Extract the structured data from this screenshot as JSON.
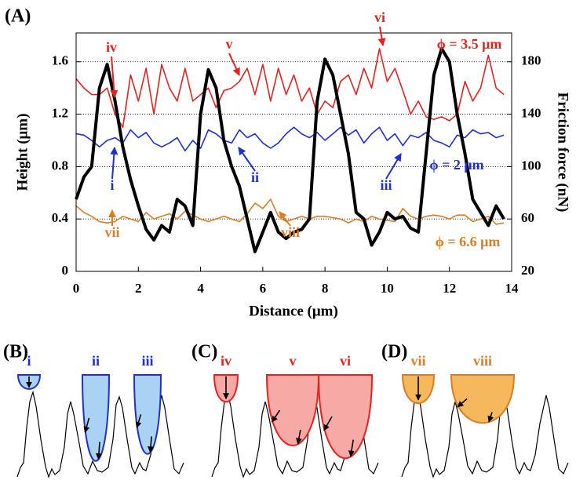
{
  "chart_data": {
    "type": "line",
    "panel_label": "(A)",
    "xlabel": "Distance (μm)",
    "ylabel": "Height (μm)",
    "y2label": "Friction force (nN)",
    "xlim": [
      0,
      14
    ],
    "xticks": [
      0,
      2,
      4,
      6,
      8,
      10,
      12,
      14
    ],
    "ylim": [
      0,
      1.82
    ],
    "yticks": [
      0,
      0.4,
      0.8,
      1.2,
      1.6
    ],
    "y2lim": [
      20,
      202
    ],
    "y2ticks": [
      20,
      60,
      100,
      140,
      180
    ],
    "grid": true,
    "x": [
      0,
      0.25,
      0.5,
      0.75,
      1,
      1.25,
      1.5,
      1.75,
      2,
      2.25,
      2.5,
      2.75,
      3,
      3.25,
      3.5,
      3.75,
      4,
      4.25,
      4.5,
      4.75,
      5,
      5.25,
      5.5,
      5.75,
      6,
      6.25,
      6.5,
      6.75,
      7,
      7.25,
      7.5,
      7.75,
      8,
      8.25,
      8.5,
      8.75,
      9,
      9.25,
      9.5,
      9.75,
      10,
      10.25,
      10.5,
      10.75,
      11,
      11.25,
      11.5,
      11.75,
      12,
      12.25,
      12.5,
      12.75,
      13,
      13.25,
      13.5,
      13.75
    ],
    "series": [
      {
        "color": "#000000",
        "values": [
          0.55,
          0.72,
          0.8,
          1.4,
          1.58,
          1.3,
          0.95,
          0.7,
          0.5,
          0.32,
          0.24,
          0.35,
          0.3,
          0.55,
          0.5,
          0.35,
          1.2,
          1.54,
          1.4,
          1.0,
          0.8,
          0.65,
          0.4,
          0.15,
          0.3,
          0.45,
          0.3,
          0.25,
          0.3,
          0.32,
          0.4,
          1.3,
          1.62,
          1.5,
          1.2,
          0.9,
          0.45,
          0.4,
          0.2,
          0.3,
          0.45,
          0.4,
          0.42,
          0.33,
          0.3,
          0.9,
          1.5,
          1.7,
          1.6,
          1.2,
          0.9,
          0.55,
          0.45,
          0.35,
          0.5,
          0.4
        ]
      },
      {
        "name": "ϕ = 3.5 μm",
        "color": "#e8211d",
        "axis": "y2",
        "markers": [
          "iv",
          "v",
          "vi"
        ],
        "values": [
          167,
          160,
          155,
          155,
          160,
          140,
          130,
          170,
          150,
          175,
          140,
          178,
          160,
          150,
          175,
          150,
          155,
          160,
          145,
          158,
          160,
          165,
          175,
          155,
          178,
          150,
          175,
          155,
          170,
          150,
          160,
          140,
          150,
          145,
          165,
          170,
          155,
          175,
          160,
          190,
          165,
          175,
          158,
          140,
          150,
          138,
          136,
          138,
          135,
          140,
          165,
          150,
          160,
          185,
          160,
          155
        ]
      },
      {
        "name": "ϕ = 2 μm",
        "color": "#1f2fd6",
        "axis": "y2",
        "markers": [
          "i",
          "ii",
          "iii"
        ],
        "values": [
          125,
          124,
          120,
          115,
          120,
          122,
          118,
          128,
          122,
          126,
          118,
          115,
          118,
          122,
          112,
          120,
          114,
          128,
          125,
          120,
          118,
          128,
          122,
          125,
          118,
          114,
          118,
          125,
          130,
          125,
          122,
          126,
          120,
          125,
          130,
          124,
          128,
          118,
          125,
          130,
          120,
          125,
          116,
          124,
          122,
          126,
          120,
          118,
          115,
          124,
          122,
          128,
          125,
          126,
          122,
          124
        ]
      },
      {
        "name": "ϕ = 6.6 μm",
        "color": "#e07b22",
        "axis": "y2",
        "markers": [
          "vii",
          "viii"
        ],
        "values": [
          70,
          65,
          62,
          58,
          57,
          58,
          62,
          60,
          58,
          65,
          60,
          62,
          64,
          60,
          66,
          63,
          60,
          58,
          60,
          62,
          60,
          58,
          64,
          72,
          68,
          75,
          62,
          58,
          60,
          62,
          60,
          62,
          62,
          61,
          60,
          57,
          60,
          58,
          62,
          60,
          59,
          58,
          68,
          62,
          60,
          62,
          63,
          62,
          60,
          63,
          63,
          58,
          60,
          62,
          56,
          57
        ]
      }
    ]
  },
  "schematics": [
    {
      "label": "(B)",
      "markers": [
        "i",
        "ii",
        "iii"
      ]
    },
    {
      "label": "(C)",
      "markers": [
        "iv",
        "v",
        "vi"
      ]
    },
    {
      "label": "(D)",
      "markers": [
        "vii",
        "viii"
      ]
    }
  ]
}
